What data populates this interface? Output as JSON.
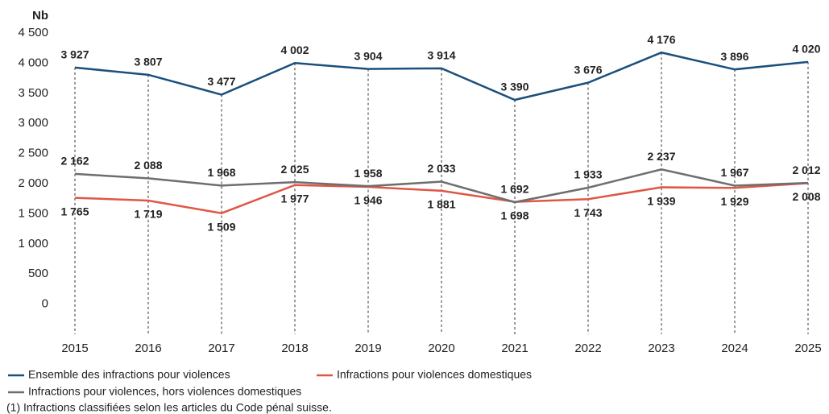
{
  "chart_data": {
    "type": "line",
    "y_axis_label": "Nb",
    "categories": [
      "2015",
      "2016",
      "2017",
      "2018",
      "2019",
      "2020",
      "2021",
      "2022",
      "2023",
      "2024",
      "2025"
    ],
    "ylim": [
      -500,
      4500
    ],
    "yticks": [
      0,
      {
        "value": 500,
        "label": "500"
      },
      {
        "value": 1000,
        "label": "1 000"
      },
      {
        "value": 1500,
        "label": "1 500"
      },
      {
        "value": 2000,
        "label": "2 000"
      },
      {
        "value": 2500,
        "label": "2 500"
      },
      {
        "value": 3000,
        "label": "3 000"
      },
      {
        "value": 3500,
        "label": "3 500"
      },
      {
        "value": 4000,
        "label": "4 000"
      },
      {
        "value": 4500,
        "label": "4 500"
      }
    ],
    "series": [
      {
        "name": "Ensemble des infractions pour violences",
        "color": "#1b4f7c",
        "values": [
          3927,
          3807,
          3477,
          4002,
          3904,
          3914,
          3390,
          3676,
          4176,
          3896,
          4020
        ],
        "value_labels": [
          "3 927",
          "3 807",
          "3 477",
          "4 002",
          "3 904",
          "3 914",
          "3 390",
          "3 676",
          "4 176",
          "3 896",
          "4 020"
        ]
      },
      {
        "name": "Infractions pour violences domestiques",
        "color": "#e05646",
        "values": [
          1765,
          1719,
          1509,
          1977,
          1946,
          1881,
          1698,
          1743,
          1939,
          1929,
          2008
        ],
        "value_labels": [
          "1 765",
          "1 719",
          "1 509",
          "1 977",
          "1 946",
          "1 881",
          "1 698",
          "1 743",
          "1 939",
          "1 929",
          "2 008"
        ]
      },
      {
        "name": "Infractions pour violences, hors violences domestiques",
        "color": "#6e6e6e",
        "values": [
          2162,
          2088,
          1968,
          2025,
          1958,
          2033,
          1692,
          1933,
          2237,
          1967,
          2012
        ],
        "value_labels": [
          "2 162",
          "2 088",
          "1 968",
          "2 025",
          "1 958",
          "2 033",
          "1 692",
          "1 933",
          "2 237",
          "1 967",
          "2 012"
        ]
      }
    ],
    "note": "(1) Infractions classifiées selon les articles du Code pénal suisse."
  }
}
